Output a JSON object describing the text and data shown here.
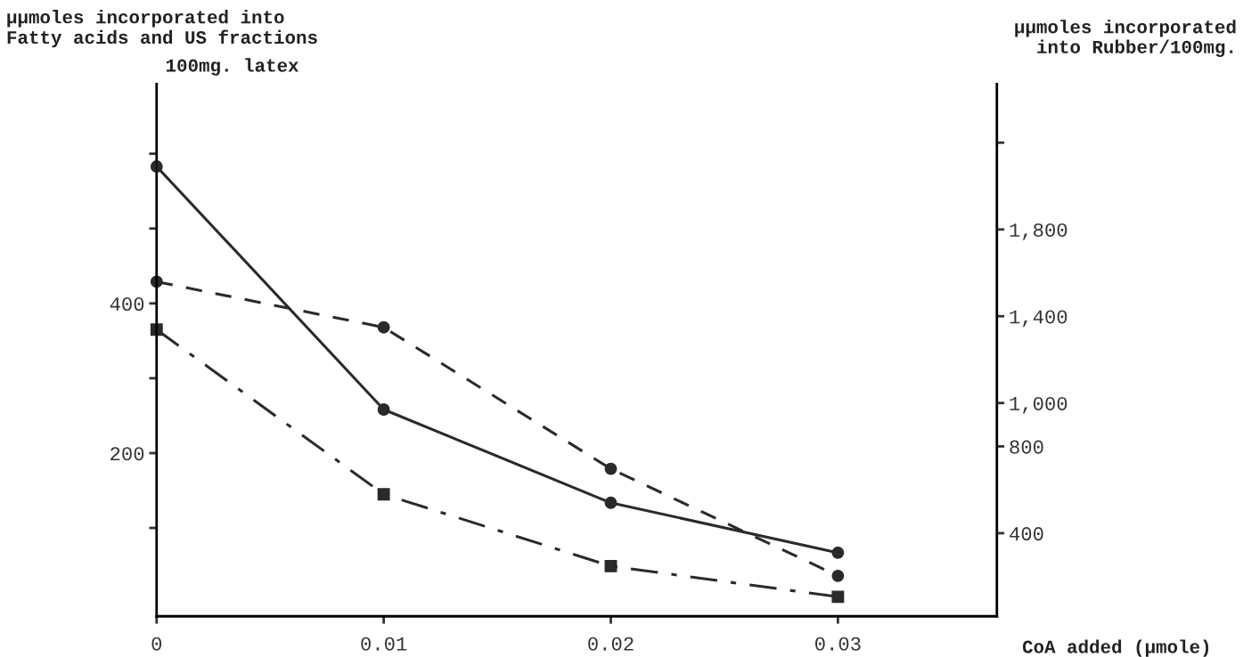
{
  "chart_data": {
    "type": "line",
    "ylabel": "μμmoles incorporated into\nFatty acids and US fractions",
    "y2label": "μμmoles incorporated\ninto Rubber/100mg.",
    "xlabel": "CoA added (μmole)",
    "annotations": [
      "100mg. latex"
    ],
    "x": [
      0,
      0.01,
      0.02,
      0.03
    ],
    "series": [
      {
        "color": "#2a2a2a",
        "values": [
          2090,
          970,
          540,
          310
        ],
        "axis": "y2",
        "marker": "circle",
        "line_style": "solid"
      },
      {
        "color": "#2a2a2a",
        "values": [
          429,
          368,
          179,
          36
        ],
        "marker": "circle",
        "line_style": "dashed"
      },
      {
        "color": "#2a2a2a",
        "values": [
          365,
          145,
          49,
          8
        ],
        "marker": "square",
        "line_style": "dashdot"
      }
    ],
    "xlim": [
      0,
      0.037
    ],
    "xticks": [
      0,
      0.01,
      0.02,
      0.03
    ],
    "ylim": [
      -18,
      693
    ],
    "yticks": [
      {
        "value": 100,
        "label": null
      },
      200,
      {
        "value": 300,
        "label": null
      },
      400,
      {
        "value": 500,
        "label": null
      },
      {
        "value": 600,
        "label": null
      }
    ],
    "y2lim": [
      17,
      2470
    ],
    "y2ticks": [
      400,
      {
        "value": 800,
        "label": "800"
      },
      {
        "value": 1000,
        "label": "1,000"
      },
      {
        "value": 1400,
        "label": "1,400"
      },
      {
        "value": 1800,
        "label": "1,800"
      },
      {
        "value": 2200,
        "label": null
      }
    ],
    "grid": false,
    "legend": false
  }
}
